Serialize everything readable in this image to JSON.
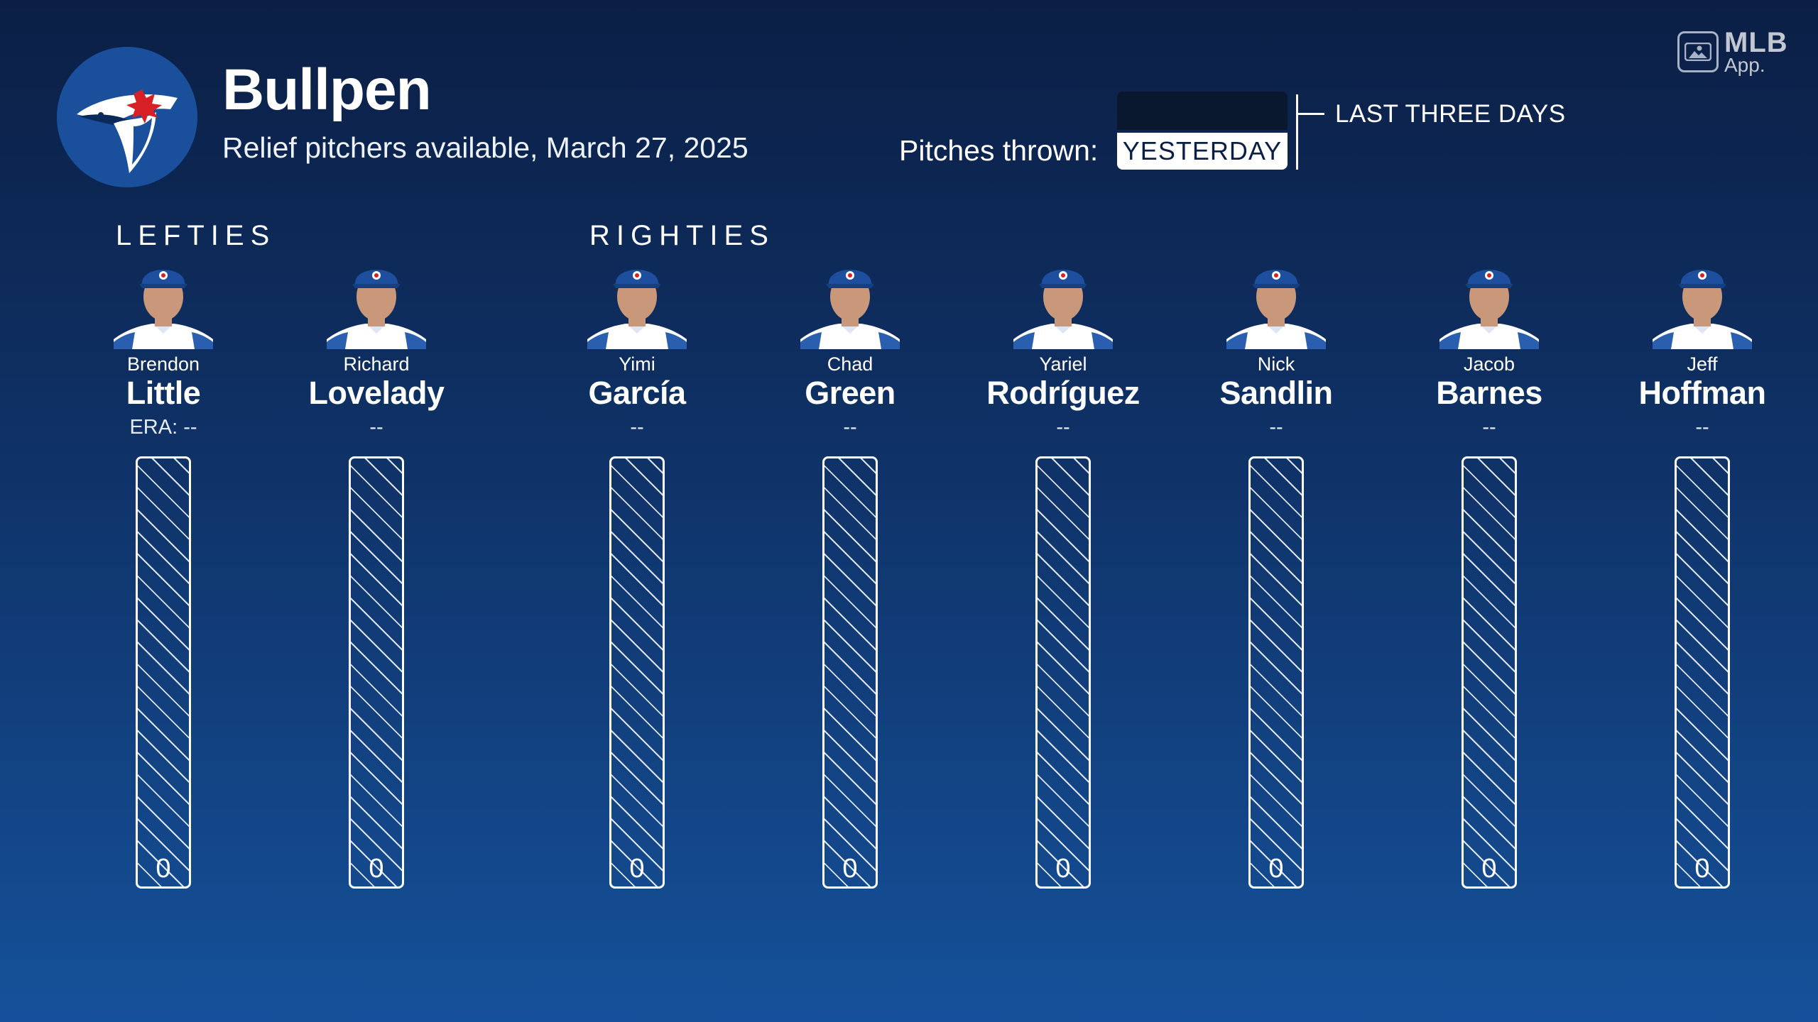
{
  "header": {
    "title": "Bullpen",
    "subtitle": "Relief pitchers available, March 27, 2025",
    "pitches_label": "Pitches thrown:",
    "selected_range": "YESTERDAY",
    "alt_range": "LAST THREE DAYS",
    "brand_line1": "MLB",
    "brand_line2": "App."
  },
  "groups": {
    "lefties": "LEFTIES",
    "righties": "RIGHTIES"
  },
  "pitchers": [
    {
      "first": "Brendon",
      "last": "Little",
      "era": "ERA: --",
      "pitches": "0",
      "hand": "L"
    },
    {
      "first": "Richard",
      "last": "Lovelady",
      "era": "--",
      "pitches": "0",
      "hand": "L"
    },
    {
      "first": "Yimi",
      "last": "García",
      "era": "--",
      "pitches": "0",
      "hand": "R"
    },
    {
      "first": "Chad",
      "last": "Green",
      "era": "--",
      "pitches": "0",
      "hand": "R"
    },
    {
      "first": "Yariel",
      "last": "Rodríguez",
      "era": "--",
      "pitches": "0",
      "hand": "R"
    },
    {
      "first": "Nick",
      "last": "Sandlin",
      "era": "--",
      "pitches": "0",
      "hand": "R"
    },
    {
      "first": "Jacob",
      "last": "Barnes",
      "era": "--",
      "pitches": "0",
      "hand": "R"
    },
    {
      "first": "Jeff",
      "last": "Hoffman",
      "era": "--",
      "pitches": "0",
      "hand": "R"
    }
  ],
  "colors": {
    "background_top": "#0b1f45",
    "background_bottom": "#15519a",
    "cap": "#1d4f9e",
    "skin": "#c9987a",
    "jersey": "#ffffff"
  }
}
